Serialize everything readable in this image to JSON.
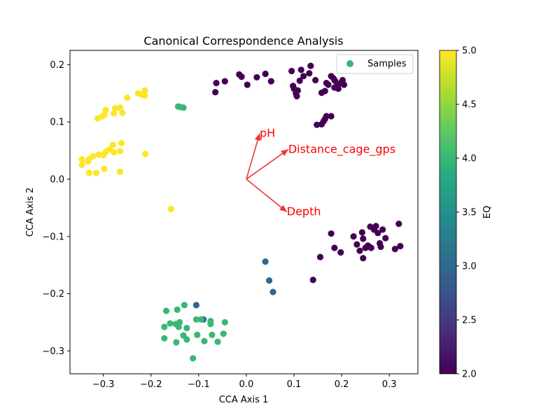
{
  "chart_data": {
    "type": "scatter",
    "title": "Canonical Correspondence Analysis",
    "xlabel": "CCA Axis 1",
    "ylabel": "CCA Axis 2",
    "xlim": [
      -0.37,
      0.36
    ],
    "ylim": [
      -0.34,
      0.225
    ],
    "x_ticks": [
      -0.3,
      -0.2,
      -0.1,
      0.0,
      0.1,
      0.2,
      0.3
    ],
    "x_tick_labels": [
      "−0.3",
      "−0.2",
      "−0.1",
      "0.0",
      "0.1",
      "0.2",
      "0.3"
    ],
    "y_ticks": [
      -0.3,
      -0.2,
      -0.1,
      0.0,
      0.1,
      0.2
    ],
    "y_tick_labels": [
      "−0.3",
      "−0.2",
      "−0.1",
      "0.0",
      "0.1",
      "0.2"
    ],
    "legend": {
      "label": "Samples",
      "color": "#35b779",
      "placement": "top-right"
    },
    "colorbar": {
      "label": "EQ",
      "range": [
        2.0,
        5.0
      ],
      "ticks": [
        2.0,
        2.5,
        3.0,
        3.5,
        4.0,
        4.5,
        5.0
      ],
      "tick_labels": [
        "2.0",
        "2.5",
        "3.0",
        "3.5",
        "4.0",
        "4.5",
        "5.0"
      ],
      "colormap": "viridis"
    },
    "arrows": [
      {
        "label": "pH",
        "x": 0.028,
        "y": 0.08
      },
      {
        "label": "Distance_cage_gps",
        "x": 0.088,
        "y": 0.052
      },
      {
        "label": "Depth",
        "x": 0.085,
        "y": -0.057
      }
    ],
    "arrow_color": "#ee3333",
    "arrow_label_color": "#ff0000",
    "series": [
      {
        "eq": 2.0,
        "points": [
          [
            -0.063,
            0.168
          ],
          [
            -0.065,
            0.152
          ],
          [
            -0.045,
            0.171
          ],
          [
            -0.015,
            0.183
          ],
          [
            -0.01,
            0.179
          ],
          [
            0.002,
            0.165
          ],
          [
            0.022,
            0.178
          ],
          [
            0.04,
            0.184
          ],
          [
            0.052,
            0.171
          ],
          [
            0.095,
            0.189
          ],
          [
            0.098,
            0.163
          ],
          [
            0.1,
            0.158
          ],
          [
            0.104,
            0.15
          ],
          [
            0.106,
            0.145
          ],
          [
            0.108,
            0.155
          ],
          [
            0.112,
            0.172
          ],
          [
            0.115,
            0.191
          ],
          [
            0.12,
            0.18
          ],
          [
            0.132,
            0.185
          ],
          [
            0.135,
            0.198
          ],
          [
            0.145,
            0.173
          ],
          [
            0.158,
            0.151
          ],
          [
            0.165,
            0.154
          ],
          [
            0.168,
            0.168
          ],
          [
            0.172,
            0.165
          ],
          [
            0.178,
            0.18
          ],
          [
            0.183,
            0.176
          ],
          [
            0.186,
            0.172
          ],
          [
            0.19,
            0.162
          ],
          [
            0.193,
            0.158
          ],
          [
            0.198,
            0.168
          ],
          [
            0.202,
            0.173
          ],
          [
            0.205,
            0.165
          ],
          [
            0.185,
            0.16
          ],
          [
            0.148,
            0.095
          ],
          [
            0.158,
            0.096
          ],
          [
            0.162,
            0.101
          ],
          [
            0.165,
            0.105
          ],
          [
            0.168,
            0.11
          ],
          [
            0.178,
            0.11
          ],
          [
            0.178,
            -0.095
          ],
          [
            0.185,
            -0.12
          ],
          [
            0.198,
            -0.128
          ],
          [
            0.155,
            -0.136
          ],
          [
            0.14,
            -0.176
          ],
          [
            0.225,
            -0.1
          ],
          [
            0.232,
            -0.114
          ],
          [
            0.238,
            -0.125
          ],
          [
            0.243,
            -0.093
          ],
          [
            0.245,
            -0.104
          ],
          [
            0.245,
            -0.138
          ],
          [
            0.25,
            -0.12
          ],
          [
            0.255,
            -0.116
          ],
          [
            0.258,
            -0.118
          ],
          [
            0.26,
            -0.083
          ],
          [
            0.262,
            -0.12
          ],
          [
            0.268,
            -0.088
          ],
          [
            0.272,
            -0.082
          ],
          [
            0.276,
            -0.094
          ],
          [
            0.28,
            -0.112
          ],
          [
            0.282,
            -0.118
          ],
          [
            0.286,
            -0.088
          ],
          [
            0.292,
            -0.103
          ],
          [
            0.312,
            -0.122
          ],
          [
            0.32,
            -0.078
          ],
          [
            0.323,
            -0.117
          ]
        ]
      },
      {
        "eq": 3.0,
        "points": [
          [
            0.04,
            -0.144
          ],
          [
            0.048,
            -0.177
          ],
          [
            0.056,
            -0.197
          ],
          [
            -0.105,
            -0.22
          ],
          [
            -0.09,
            -0.245
          ]
        ]
      },
      {
        "eq": 4.0,
        "points": [
          [
            -0.138,
            0.126
          ],
          [
            -0.143,
            0.127
          ],
          [
            -0.132,
            0.125
          ],
          [
            -0.168,
            -0.23
          ],
          [
            -0.145,
            -0.228
          ],
          [
            -0.13,
            -0.22
          ],
          [
            -0.16,
            -0.252
          ],
          [
            -0.148,
            -0.253
          ],
          [
            -0.14,
            -0.25
          ],
          [
            -0.142,
            -0.258
          ],
          [
            -0.125,
            -0.26
          ],
          [
            -0.105,
            -0.245
          ],
          [
            -0.095,
            -0.245
          ],
          [
            -0.075,
            -0.248
          ],
          [
            -0.075,
            -0.253
          ],
          [
            -0.045,
            -0.25
          ],
          [
            -0.172,
            -0.258
          ],
          [
            -0.172,
            -0.278
          ],
          [
            -0.147,
            -0.285
          ],
          [
            -0.132,
            -0.273
          ],
          [
            -0.125,
            -0.28
          ],
          [
            -0.103,
            -0.272
          ],
          [
            -0.088,
            -0.283
          ],
          [
            -0.072,
            -0.272
          ],
          [
            -0.06,
            -0.284
          ],
          [
            -0.048,
            -0.27
          ],
          [
            -0.112,
            -0.313
          ]
        ]
      },
      {
        "eq": 5.0,
        "points": [
          [
            -0.213,
            0.155
          ],
          [
            -0.213,
            0.146
          ],
          [
            -0.22,
            0.148
          ],
          [
            -0.227,
            0.15
          ],
          [
            -0.25,
            0.142
          ],
          [
            -0.265,
            0.125
          ],
          [
            -0.26,
            0.116
          ],
          [
            -0.275,
            0.124
          ],
          [
            -0.278,
            0.115
          ],
          [
            -0.295,
            0.121
          ],
          [
            -0.298,
            0.112
          ],
          [
            -0.312,
            0.106
          ],
          [
            -0.302,
            0.11
          ],
          [
            -0.345,
            0.035
          ],
          [
            -0.345,
            0.025
          ],
          [
            -0.33,
            0.035
          ],
          [
            -0.332,
            0.031
          ],
          [
            -0.322,
            0.04
          ],
          [
            -0.31,
            0.043
          ],
          [
            -0.3,
            0.042
          ],
          [
            -0.295,
            0.048
          ],
          [
            -0.287,
            0.052
          ],
          [
            -0.28,
            0.06
          ],
          [
            -0.278,
            0.047
          ],
          [
            -0.262,
            0.063
          ],
          [
            -0.265,
            0.049
          ],
          [
            -0.212,
            0.044
          ],
          [
            -0.33,
            0.011
          ],
          [
            -0.315,
            0.011
          ],
          [
            -0.298,
            0.018
          ],
          [
            -0.265,
            0.013
          ],
          [
            -0.158,
            -0.052
          ]
        ]
      }
    ]
  }
}
